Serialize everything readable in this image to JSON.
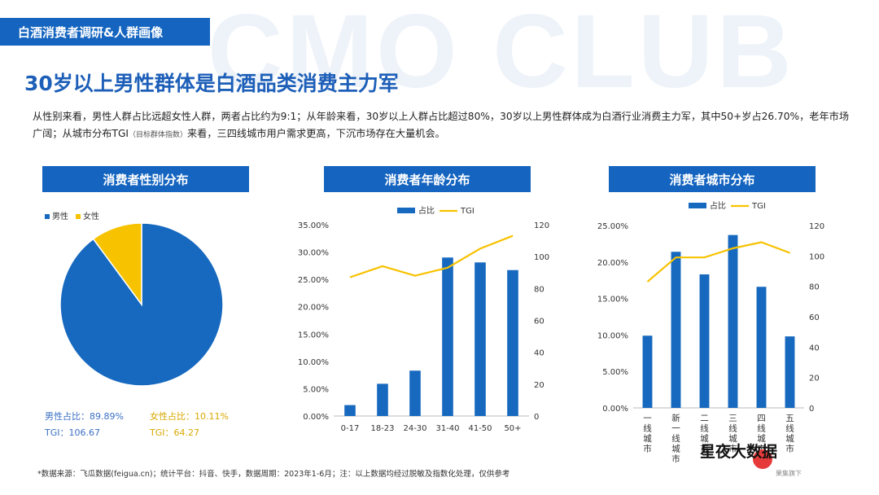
{
  "watermark": "CMO CLUB",
  "header": {
    "section": "白酒消费者调研&人群画像"
  },
  "title": "30岁以上男性群体是白酒品类消费主力军",
  "description": {
    "part1": "从性别来看，男性人群占比远超女性人群，两者占比约为9:1；从年龄来看，30岁以上人群占比超过80%，30岁以上男性群体成为白酒行业消费主力军，其中50+岁占26.70%，老年市场广阔；从城市分布TGI",
    "small": "（目标群体指数）",
    "part2": "来看，三四线城市用户需求更高，下沉市场存在大量机会。"
  },
  "footnote": "*数据来源：飞瓜数据(feigua.cn)；统计平台：抖音、快手，数据周期：2023年1-6月；注：以上数据均经过脱敏及指数化处理，仅供参考",
  "brand": {
    "name": "星夜大数据",
    "logo_sub": "果集旗下"
  },
  "colors": {
    "blue": "#1565c0",
    "bar": "#1769bf",
    "yellow": "#f7c200",
    "title": "#1d5fb8"
  },
  "chart_data": [
    {
      "type": "pie",
      "title": "消费者性别分布",
      "legend": [
        "男性",
        "女性"
      ],
      "slices": [
        {
          "name": "男性",
          "value": 89.89,
          "color": "#1769bf"
        },
        {
          "name": "女性",
          "value": 10.11,
          "color": "#f7c200"
        }
      ],
      "labels": {
        "male_share": "男性占比：89.89%",
        "male_tgi": "TGI：106.67",
        "female_share": "女性占比：10.11%",
        "female_tgi": "TGI：64.27"
      }
    },
    {
      "type": "bar",
      "title": "消费者年龄分布",
      "categories": [
        "0-17",
        "18-23",
        "24-30",
        "31-40",
        "41-50",
        "50+"
      ],
      "series": [
        {
          "name": "占比",
          "kind": "bar",
          "values": [
            2.0,
            5.9,
            8.3,
            29.0,
            28.1,
            26.7
          ]
        },
        {
          "name": "TGI",
          "kind": "line",
          "values": [
            87,
            94,
            88,
            93,
            105,
            113
          ]
        }
      ],
      "y_left": {
        "min": 0,
        "max": 35,
        "step": 5,
        "ticks": [
          "0.00%",
          "5.00%",
          "10.00%",
          "15.00%",
          "20.00%",
          "25.00%",
          "30.00%",
          "35.00%"
        ]
      },
      "y_right": {
        "min": 0,
        "max": 120,
        "step": 20,
        "ticks": [
          "0",
          "20",
          "40",
          "60",
          "80",
          "100",
          "120"
        ]
      }
    },
    {
      "type": "bar",
      "title": "消费者城市分布",
      "categories": [
        "一线城市",
        "新一线城市",
        "二线城市",
        "三线城市",
        "四线城市",
        "五线城市"
      ],
      "series": [
        {
          "name": "占比",
          "kind": "bar",
          "values": [
            9.9,
            21.4,
            18.3,
            23.7,
            16.6,
            9.8
          ]
        },
        {
          "name": "TGI",
          "kind": "line",
          "values": [
            83,
            99,
            99,
            105,
            109,
            102
          ]
        }
      ],
      "y_left": {
        "min": 0,
        "max": 25,
        "step": 5,
        "ticks": [
          "0.00%",
          "5.00%",
          "10.00%",
          "15.00%",
          "20.00%",
          "25.00%"
        ]
      },
      "y_right": {
        "min": 0,
        "max": 120,
        "step": 20,
        "ticks": [
          "0",
          "20",
          "40",
          "60",
          "80",
          "100",
          "120"
        ]
      }
    }
  ]
}
